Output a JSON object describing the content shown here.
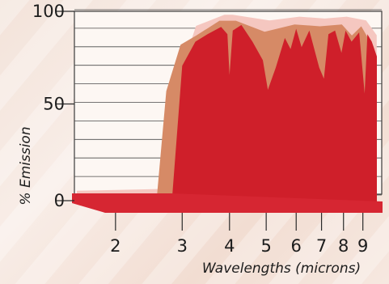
{
  "chart_data": {
    "type": "area",
    "title": "",
    "xlabel": "Wavelengths (microns)",
    "ylabel": "% Emission",
    "x_scale": "log",
    "xlim": [
      1.55,
      9.8
    ],
    "ylim": [
      0,
      100
    ],
    "x_ticks": [
      "2",
      "3",
      "4",
      "5",
      "6",
      "7",
      "8",
      "9"
    ],
    "y_ticks": [
      "0",
      "50",
      "100"
    ],
    "grid": true,
    "colors": {
      "front": "#cf1f2a",
      "middle": "#d68a66",
      "back": "#f5c7c0",
      "base": "#d62632"
    },
    "series": [
      {
        "x": [
          1.55,
          2.55,
          2.85,
          3.2,
          3.8,
          4.0,
          5.0,
          6.0,
          7.0,
          8.0,
          9.0,
          9.6
        ],
        "y": [
          4,
          5,
          62,
          93,
          99,
          99,
          96,
          98,
          97,
          98,
          96,
          88
        ]
      },
      {
        "x": [
          1.55,
          2.6,
          2.75,
          3.0,
          3.3,
          3.8,
          4.2,
          5.0,
          6.0,
          7.0,
          8.0,
          8.5,
          9.0,
          9.6
        ],
        "y": [
          4,
          4,
          60,
          85,
          90,
          98,
          98,
          92,
          96,
          95,
          96,
          90,
          95,
          85
        ]
      },
      {
        "x": [
          1.55,
          2.75,
          2.82,
          3.0,
          3.25,
          3.5,
          3.8,
          3.95,
          4.0,
          4.08,
          4.3,
          4.6,
          4.9,
          5.05,
          5.3,
          5.6,
          5.8,
          6.0,
          6.2,
          6.5,
          6.9,
          7.1,
          7.3,
          7.6,
          7.9,
          8.1,
          8.4,
          8.8,
          9.1,
          9.25,
          9.5,
          9.8
        ],
        "y": [
          0,
          0,
          3,
          75,
          88,
          92,
          96,
          92,
          70,
          94,
          97,
          88,
          78,
          62,
          74,
          90,
          84,
          95,
          85,
          94,
          74,
          68,
          92,
          94,
          82,
          94,
          88,
          93,
          60,
          92,
          88,
          80
        ]
      }
    ]
  }
}
